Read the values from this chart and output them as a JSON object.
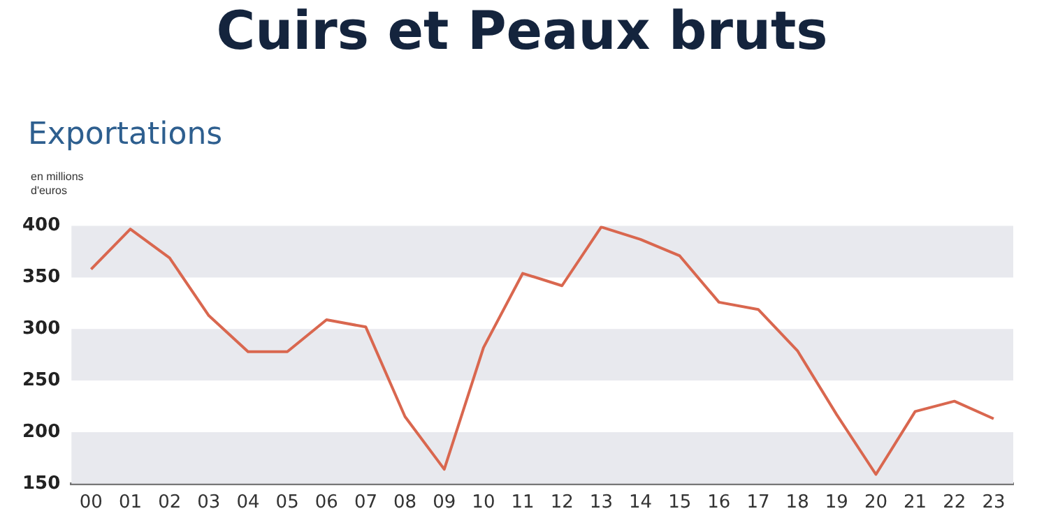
{
  "chart_data": {
    "type": "line",
    "title": "Cuirs et Peaux bruts",
    "subtitle": "Exportations",
    "ylabel": "en millions d'euros",
    "categories": [
      "00",
      "01",
      "02",
      "03",
      "04",
      "05",
      "06",
      "07",
      "08",
      "09",
      "10",
      "11",
      "12",
      "13",
      "14",
      "15",
      "16",
      "17",
      "18",
      "19",
      "20",
      "21",
      "22",
      "23"
    ],
    "series": [
      {
        "color": "#d9674f",
        "values": [
          358,
          397,
          369,
          313,
          278,
          278,
          309,
          302,
          215,
          164,
          282,
          354,
          342,
          399,
          387,
          371,
          326,
          319,
          279,
          217,
          159,
          220,
          230,
          213
        ]
      }
    ],
    "ylim": [
      150,
      400
    ],
    "yticks": [
      150,
      200,
      250,
      300,
      350,
      400
    ],
    "grid": false,
    "legend": false,
    "marker": "none",
    "line_style": "solid",
    "bands": [
      {
        "axis": "y",
        "from": 150,
        "to": 200,
        "color": "#e8e9ee"
      },
      {
        "axis": "y",
        "from": 250,
        "to": 300,
        "color": "#e8e9ee"
      },
      {
        "axis": "y",
        "from": 350,
        "to": 400,
        "color": "#e8e9ee"
      }
    ]
  }
}
